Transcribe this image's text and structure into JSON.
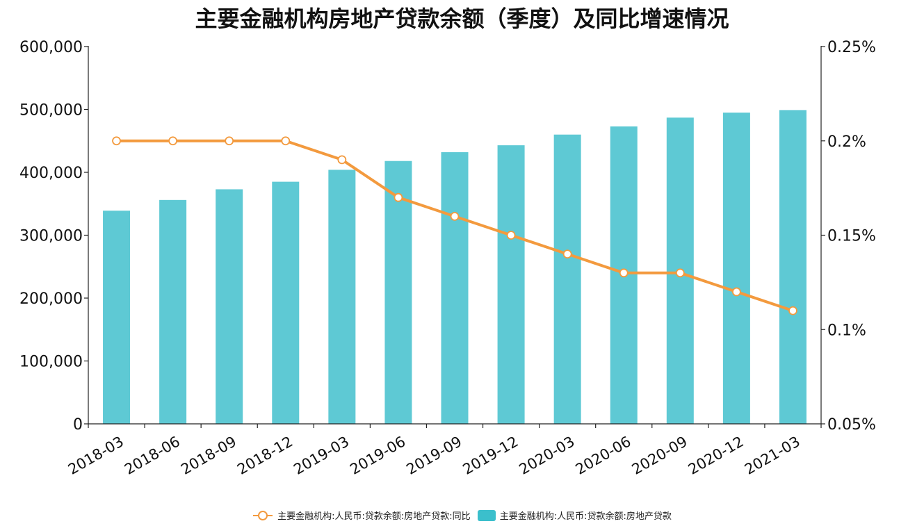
{
  "chart_data": {
    "type": "bar",
    "title": "主要金融机构房地产贷款余额（季度）及同比增速情况",
    "categories": [
      "2018-03",
      "2018-06",
      "2018-09",
      "2018-12",
      "2019-03",
      "2019-06",
      "2019-09",
      "2019-12",
      "2020-03",
      "2020-06",
      "2020-09",
      "2020-12",
      "2021-03"
    ],
    "series": [
      {
        "name": "主要金融机构:人民币:贷款余额:房地产贷款",
        "kind": "bar",
        "axis": "left",
        "color": "#5ec9d4",
        "values": [
          339000,
          356000,
          373000,
          385000,
          404000,
          418000,
          432000,
          443000,
          460000,
          473000,
          487000,
          495000,
          499000
        ]
      },
      {
        "name": "主要金融机构:人民币:贷款余额:房地产贷款:同比",
        "kind": "line",
        "axis": "right",
        "color": "#f39a3e",
        "values": [
          0.2,
          0.2,
          0.2,
          0.2,
          0.19,
          0.17,
          0.16,
          0.15,
          0.14,
          0.13,
          0.13,
          0.12,
          0.11
        ]
      }
    ],
    "yleft": {
      "min": 0,
      "max": 600000,
      "ticks": [
        0,
        100000,
        200000,
        300000,
        400000,
        500000,
        600000
      ],
      "tick_labels": [
        "0",
        "100,000",
        "200,000",
        "300,000",
        "400,000",
        "500,000",
        "600,000"
      ]
    },
    "yright": {
      "min": 0.05,
      "max": 0.25,
      "ticks": [
        0.05,
        0.1,
        0.15,
        0.2,
        0.25
      ],
      "tick_labels": [
        "0.05%",
        "0.1%",
        "0.15%",
        "0.2%",
        "0.25%"
      ]
    },
    "legend_position": "bottom-center",
    "grid": false
  }
}
